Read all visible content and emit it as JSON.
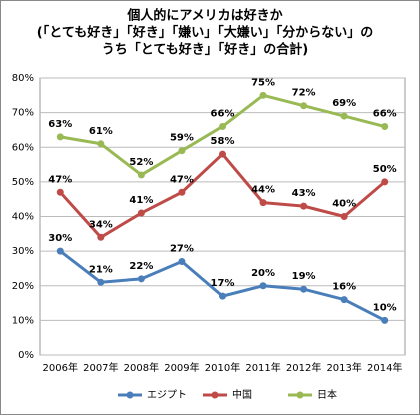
{
  "chart_data": {
    "type": "line",
    "title": [
      "個人的にアメリカは好きか",
      "(「とても好き」「好き」「嫌い」「大嫌い」「分からない」の",
      "うち「とても好き」「好き」の合計)"
    ],
    "categories": [
      "2006年",
      "2007年",
      "2008年",
      "2009年",
      "2010年",
      "2011年",
      "2012年",
      "2013年",
      "2014年"
    ],
    "series": [
      {
        "name": "エジプト",
        "color": "#4a7ebb",
        "values": [
          30,
          21,
          22,
          27,
          17,
          20,
          19,
          16,
          10
        ],
        "value_labels": [
          "30%",
          "21%",
          "22%",
          "27%",
          "17%",
          "20%",
          "19%",
          "16%",
          "10%"
        ]
      },
      {
        "name": "中国",
        "color": "#be4b48",
        "values": [
          47,
          34,
          41,
          47,
          58,
          44,
          43,
          40,
          50
        ],
        "value_labels": [
          "47%",
          "34%",
          "41%",
          "47%",
          "58%",
          "44%",
          "43%",
          "40%",
          "50%"
        ]
      },
      {
        "name": "日本",
        "color": "#98b954",
        "values": [
          63,
          61,
          52,
          59,
          66,
          75,
          72,
          69,
          66
        ],
        "value_labels": [
          "63%",
          "61%",
          "52%",
          "59%",
          "66%",
          "75%",
          "72%",
          "69%",
          "66%"
        ]
      }
    ],
    "ylim": [
      0,
      80
    ],
    "yticks": [
      {
        "value": 0,
        "label": "0%"
      },
      {
        "value": 10,
        "label": "10%"
      },
      {
        "value": 20,
        "label": "20%"
      },
      {
        "value": 30,
        "label": "30%"
      },
      {
        "value": 40,
        "label": "40%"
      },
      {
        "value": 50,
        "label": "50%"
      },
      {
        "value": 60,
        "label": "60%"
      },
      {
        "value": 70,
        "label": "70%"
      },
      {
        "value": 80,
        "label": "80%"
      }
    ],
    "grid": true
  }
}
